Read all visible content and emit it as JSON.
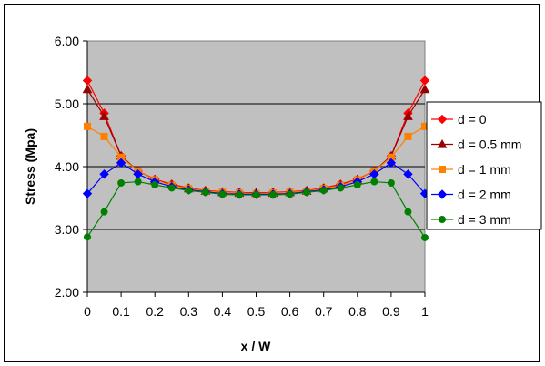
{
  "chart_data": {
    "type": "line",
    "title": "",
    "xlabel": "x / W",
    "ylabel": "Stress (Mpa)",
    "xlim": [
      0,
      1
    ],
    "ylim": [
      2.0,
      6.0
    ],
    "x_ticks": [
      "0",
      "0.1",
      "0.2",
      "0.3",
      "0.4",
      "0.5",
      "0.6",
      "0.7",
      "0.8",
      "0.9",
      "1"
    ],
    "y_ticks": [
      "2.00",
      "3.00",
      "4.00",
      "5.00",
      "6.00"
    ],
    "grid": "horizontal",
    "plot_background": "#c0c0c0",
    "legend_position": "right",
    "x": [
      0,
      0.05,
      0.1,
      0.15,
      0.2,
      0.25,
      0.3,
      0.35,
      0.4,
      0.45,
      0.5,
      0.55,
      0.6,
      0.65,
      0.7,
      0.75,
      0.8,
      0.85,
      0.9,
      0.95,
      1
    ],
    "series": [
      {
        "name": "d = 0",
        "color": "#ff0000",
        "marker": "diamond",
        "values": [
          5.37,
          4.85,
          4.17,
          3.93,
          3.8,
          3.72,
          3.66,
          3.62,
          3.6,
          3.59,
          3.58,
          3.59,
          3.6,
          3.62,
          3.66,
          3.72,
          3.8,
          3.93,
          4.17,
          4.85,
          5.37
        ]
      },
      {
        "name": "d = 0.5 mm",
        "color": "#990000",
        "marker": "triangle",
        "values": [
          5.23,
          4.8,
          4.17,
          3.93,
          3.79,
          3.71,
          3.65,
          3.61,
          3.59,
          3.58,
          3.58,
          3.58,
          3.59,
          3.61,
          3.65,
          3.71,
          3.79,
          3.93,
          4.17,
          4.8,
          5.23
        ]
      },
      {
        "name": "d = 1 mm",
        "color": "#ff8000",
        "marker": "square",
        "values": [
          4.64,
          4.48,
          4.15,
          3.93,
          3.79,
          3.7,
          3.65,
          3.61,
          3.59,
          3.58,
          3.57,
          3.58,
          3.59,
          3.61,
          3.65,
          3.7,
          3.79,
          3.93,
          4.15,
          4.48,
          4.64
        ]
      },
      {
        "name": "d = 2 mm",
        "color": "#0000ff",
        "marker": "diamond",
        "values": [
          3.57,
          3.88,
          4.06,
          3.88,
          3.76,
          3.68,
          3.63,
          3.6,
          3.57,
          3.56,
          3.56,
          3.56,
          3.57,
          3.6,
          3.63,
          3.68,
          3.76,
          3.88,
          4.06,
          3.88,
          3.57
        ]
      },
      {
        "name": "d = 3 mm",
        "color": "#008000",
        "marker": "circle",
        "values": [
          2.88,
          3.28,
          3.74,
          3.76,
          3.71,
          3.66,
          3.62,
          3.59,
          3.56,
          3.55,
          3.55,
          3.55,
          3.56,
          3.59,
          3.62,
          3.66,
          3.71,
          3.76,
          3.74,
          3.28,
          2.87
        ]
      }
    ]
  }
}
